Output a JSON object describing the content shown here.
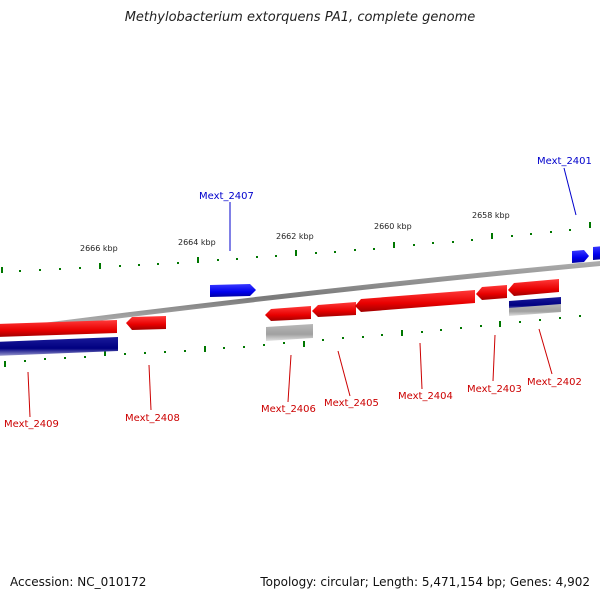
{
  "title": "Methylobacterium extorquens PA1, complete genome",
  "footer": {
    "accession": "Accession: NC_010172",
    "summary": "Topology: circular; Length: 5,471,154 bp; Genes: 4,902"
  },
  "colors": {
    "forward_gene": "#0000ee",
    "reverse_gene": "#ee0000",
    "forward_feature": "#000080",
    "reverse_feature": "#a0a0a0",
    "backbone": "#888888",
    "tick": "#007700"
  },
  "scale_labels": [
    "2666 kbp",
    "2664 kbp",
    "2662 kbp",
    "2660 kbp",
    "2658 kbp"
  ],
  "genes": [
    {
      "name": "Mext_2401",
      "strand": "forward",
      "icon": "gene-arrow-right"
    },
    {
      "name": "Mext_2402",
      "strand": "reverse",
      "icon": "gene-arrow-left"
    },
    {
      "name": "Mext_2403",
      "strand": "reverse",
      "icon": "gene-arrow-left"
    },
    {
      "name": "Mext_2404",
      "strand": "reverse",
      "icon": "gene-arrow-left"
    },
    {
      "name": "Mext_2405",
      "strand": "reverse",
      "icon": "gene-arrow-left"
    },
    {
      "name": "Mext_2406",
      "strand": "reverse",
      "icon": "gene-arrow-left"
    },
    {
      "name": "Mext_2407",
      "strand": "forward",
      "icon": "gene-arrow-right"
    },
    {
      "name": "Mext_2408",
      "strand": "reverse",
      "icon": "gene-arrow-left"
    },
    {
      "name": "Mext_2409",
      "strand": "reverse",
      "icon": "gene-arrow-left"
    }
  ]
}
